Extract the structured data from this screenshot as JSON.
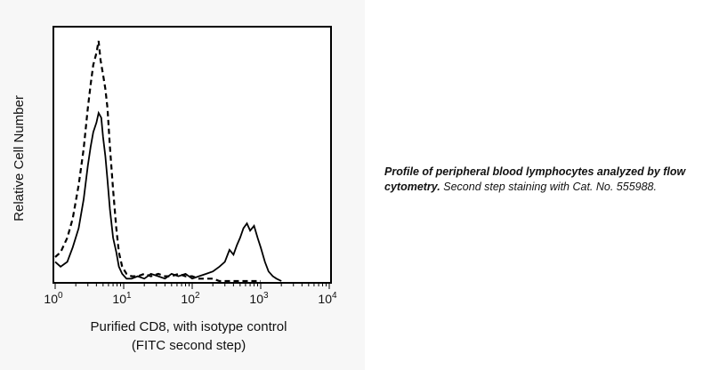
{
  "chart_data": {
    "type": "line",
    "ylabel": "Relative Cell Number",
    "xlabel_line1": "Purified CD8, with isotype control",
    "xlabel_line2": "(FITC second step)",
    "x_scale": "log",
    "xlim": [
      1,
      10000
    ],
    "x_ticks": [
      {
        "base": "10",
        "exp": "0",
        "value": 1
      },
      {
        "base": "10",
        "exp": "1",
        "value": 10
      },
      {
        "base": "10",
        "exp": "2",
        "value": 100
      },
      {
        "base": "10",
        "exp": "3",
        "value": 1000
      },
      {
        "base": "10",
        "exp": "4",
        "value": 10000
      }
    ],
    "ylim": [
      0,
      100
    ],
    "grid": false,
    "series": [
      {
        "style": "solid",
        "color": "#000000",
        "x": [
          1.0,
          1.2,
          1.5,
          1.8,
          2.2,
          2.6,
          3.0,
          3.3,
          3.6,
          4.0,
          4.3,
          4.7,
          5.0,
          5.4,
          5.8,
          6.3,
          7.0,
          7.8,
          8.5,
          9.5,
          11,
          13,
          16,
          20,
          25,
          32,
          40,
          50,
          63,
          80,
          100,
          125,
          160,
          200,
          250,
          300,
          350,
          400,
          450,
          500,
          560,
          630,
          700,
          800,
          900,
          1000,
          1150,
          1300,
          1500,
          1700,
          2000
        ],
        "y": [
          8,
          6,
          8,
          14,
          22,
          34,
          48,
          56,
          62,
          66,
          70,
          68,
          60,
          52,
          42,
          30,
          18,
          12,
          6,
          3,
          1,
          1,
          2,
          1,
          3,
          2,
          1,
          3,
          2,
          3,
          1,
          2,
          3,
          4,
          6,
          8,
          13,
          11,
          15,
          18,
          22,
          24,
          21,
          23,
          18,
          14,
          8,
          4,
          2,
          1,
          0
        ]
      },
      {
        "style": "dashed",
        "color": "#000000",
        "x": [
          1.0,
          1.2,
          1.5,
          1.8,
          2.2,
          2.6,
          3.0,
          3.3,
          3.6,
          4.0,
          4.3,
          4.6,
          5.0,
          5.4,
          5.8,
          6.3,
          7.0,
          7.8,
          8.5,
          9.5,
          11,
          13,
          16,
          20,
          25,
          32,
          40,
          50,
          63,
          80,
          100,
          125,
          160,
          200,
          250,
          300,
          400,
          500,
          700,
          1000
        ],
        "y": [
          10,
          12,
          18,
          26,
          40,
          55,
          72,
          82,
          90,
          95,
          100,
          92,
          86,
          80,
          72,
          56,
          38,
          22,
          12,
          6,
          3,
          2,
          2,
          3,
          2,
          3,
          2,
          2,
          3,
          2,
          2,
          1,
          1,
          1,
          0,
          0,
          0,
          0,
          0,
          0
        ]
      }
    ]
  },
  "caption": {
    "bold": "Profile of peripheral blood lymphocytes analyzed by flow cytometry.",
    "normal": "Second step staining with Cat. No. 555988."
  }
}
